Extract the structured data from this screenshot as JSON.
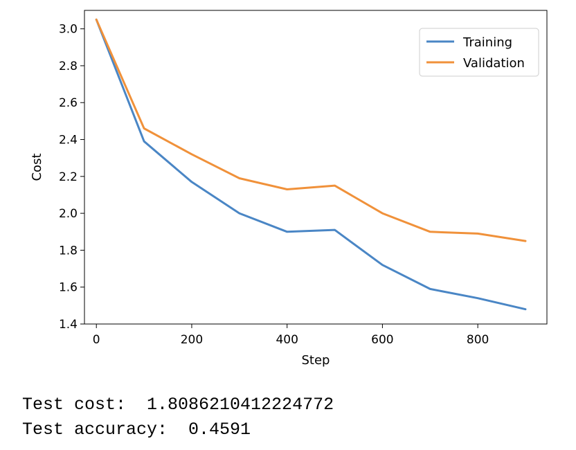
{
  "chart_data": {
    "type": "line",
    "xlabel": "Step",
    "ylabel": "Cost",
    "xlim": [
      -25,
      945
    ],
    "ylim": [
      1.4,
      3.1
    ],
    "xticks": [
      0,
      200,
      400,
      600,
      800
    ],
    "yticks": [
      1.4,
      1.6,
      1.8,
      2.0,
      2.2,
      2.4,
      2.6,
      2.8,
      3.0
    ],
    "grid": false,
    "legend_position": "top-right",
    "x": [
      0,
      100,
      200,
      300,
      400,
      500,
      600,
      700,
      800,
      900
    ],
    "series": [
      {
        "name": "Training",
        "color": "#4a86c5",
        "values": [
          3.05,
          2.39,
          2.17,
          2.0,
          1.9,
          1.91,
          1.72,
          1.59,
          1.54,
          1.48
        ]
      },
      {
        "name": "Validation",
        "color": "#f0913a",
        "values": [
          3.05,
          2.46,
          2.32,
          2.19,
          2.13,
          2.15,
          2.0,
          1.9,
          1.89,
          1.85
        ]
      }
    ]
  },
  "output": {
    "line1": "Test cost:  1.8086210412224772",
    "line2": "Test accuracy:  0.4591"
  }
}
